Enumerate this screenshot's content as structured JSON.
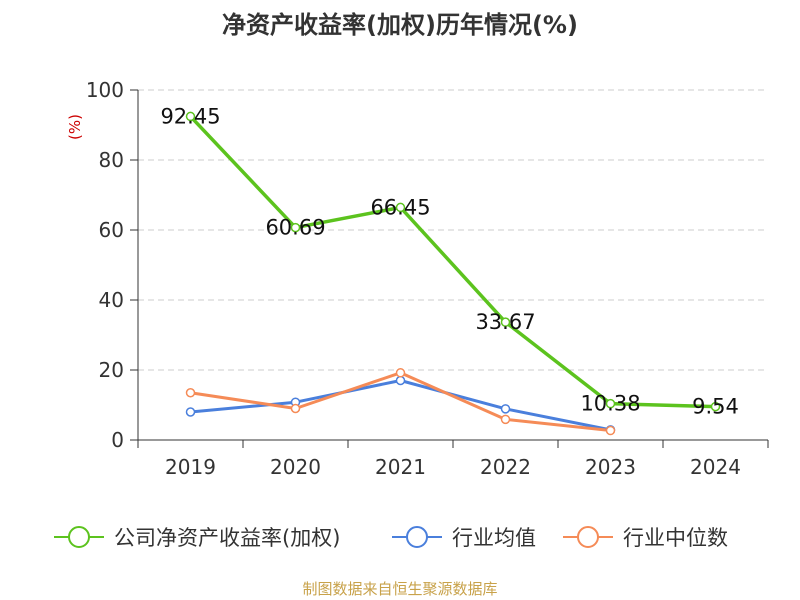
{
  "title": "净资产收益率(加权)历年情况(%)",
  "source": "制图数据来自恒生聚源数据库",
  "colors": {
    "series1": "#5cc31e",
    "series2": "#4a7fdc",
    "series3": "#f58b57",
    "unit": "#cc0000",
    "source": "#c8a24a"
  },
  "chart_data": {
    "type": "line",
    "title": "净资产收益率(加权)历年情况(%)",
    "ylabel": "(%)",
    "xlabel": "",
    "ylim": [
      0,
      100
    ],
    "yticks": [
      0,
      20,
      40,
      60,
      80,
      100
    ],
    "grid": true,
    "legend_position": "bottom",
    "categories": [
      "2019",
      "2020",
      "2021",
      "2022",
      "2023",
      "2024"
    ],
    "series": [
      {
        "name": "公司净资产收益率(加权)",
        "values": [
          92.45,
          60.69,
          66.45,
          33.67,
          10.38,
          9.54
        ],
        "labels": [
          "92.45",
          "60.69",
          "66.45",
          "33.67",
          "10.38",
          "9.54"
        ],
        "color": "#5cc31e"
      },
      {
        "name": "行业均值",
        "values": [
          8.0,
          10.8,
          17.0,
          8.9,
          2.9,
          null
        ],
        "color": "#4a7fdc"
      },
      {
        "name": "行业中位数",
        "values": [
          13.5,
          9.0,
          19.2,
          5.9,
          2.7,
          null
        ],
        "color": "#f58b57"
      }
    ]
  }
}
